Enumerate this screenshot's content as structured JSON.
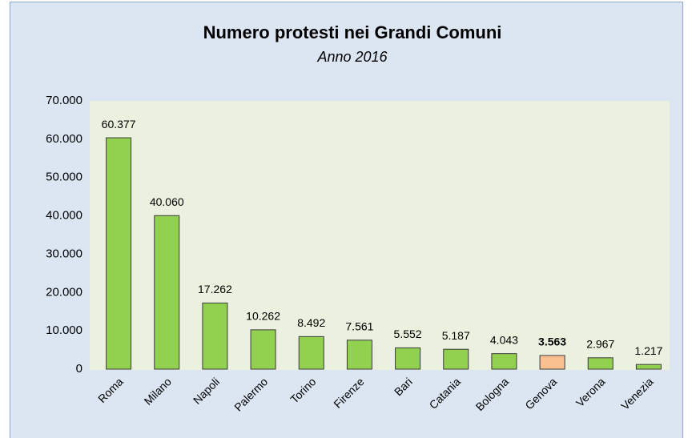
{
  "chart_data": {
    "type": "bar",
    "title": "Numero protesti nei Grandi Comuni",
    "subtitle": "Anno 2016",
    "categories": [
      "Roma",
      "Milano",
      "Napoli",
      "Palermo",
      "Torino",
      "Firenze",
      "Bari",
      "Catania",
      "Bologna",
      "Genova",
      "Verona",
      "Venezia"
    ],
    "values": [
      60377,
      40060,
      17262,
      10262,
      8492,
      7561,
      5552,
      5187,
      4043,
      3563,
      2967,
      1217
    ],
    "value_labels": [
      "60.377",
      "40.060",
      "17.262",
      "10.262",
      "8.492",
      "7.561",
      "5.552",
      "5.187",
      "4.043",
      "3.563",
      "2.967",
      "1.217"
    ],
    "colors": [
      "#92d050",
      "#92d050",
      "#92d050",
      "#92d050",
      "#92d050",
      "#92d050",
      "#92d050",
      "#92d050",
      "#92d050",
      "#fac090",
      "#92d050",
      "#92d050"
    ],
    "highlight_category": "Genova",
    "ylim": [
      0,
      70000
    ],
    "yticks": [
      0,
      {
        "value": 10000,
        "label": "10.000"
      },
      {
        "value": 20000,
        "label": "20.000"
      },
      {
        "value": 30000,
        "label": "30.000"
      },
      {
        "value": 40000,
        "label": "40.000"
      },
      {
        "value": 50000,
        "label": "50.000"
      },
      {
        "value": 60000,
        "label": "60.000"
      },
      {
        "value": 70000,
        "label": "70.000"
      }
    ],
    "grid": false
  }
}
